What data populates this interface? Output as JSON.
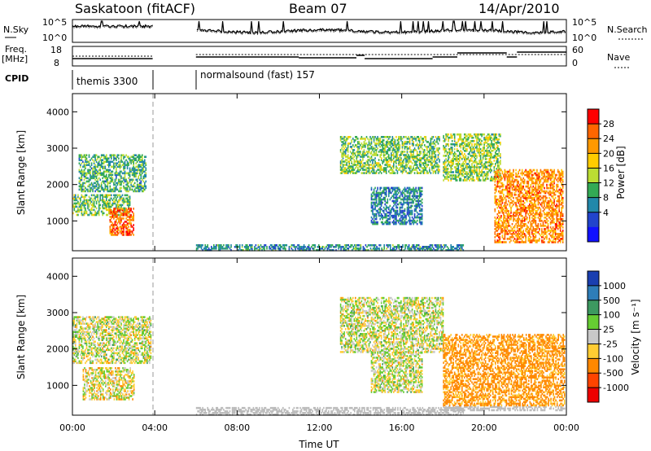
{
  "header": {
    "station": "Saskatoon (fitACF)",
    "beam": "Beam 07",
    "date": "14/Apr/2010"
  },
  "strips": {
    "nsky_label": "N.Sky",
    "nsearch_label": "N.Search",
    "noise_ticks": [
      "10^5",
      "10^0"
    ],
    "freq_label_line1": "Freq.",
    "freq_label_line2": "[MHz]",
    "freq_ticks": [
      "18",
      "8"
    ],
    "nave_label": "Nave",
    "nave_ticks": [
      "60",
      "0"
    ],
    "cpid_label": "CPID",
    "cpid_entries": [
      {
        "name": "themis 3300"
      },
      {
        "name": "normalsound (fast) 157"
      }
    ]
  },
  "panels": {
    "ylabel": "Slant Range [km]",
    "xlabel": "Time UT",
    "yticks": [
      "4000",
      "3000",
      "2000",
      "1000"
    ],
    "xticks": [
      "00:00",
      "04:00",
      "08:00",
      "12:00",
      "16:00",
      "20:00",
      "00:00"
    ]
  },
  "power_scale": {
    "label": "Power [dB]",
    "ticks": [
      "28",
      "24",
      "20",
      "16",
      "12",
      "8",
      "4"
    ],
    "colors": [
      "#ff0000",
      "#ff6600",
      "#ff9900",
      "#ffcc00",
      "#bbdd33",
      "#33aa55",
      "#2288aa",
      "#2244cc",
      "#1111ff"
    ]
  },
  "velocity_scale": {
    "label": "Velocity [m s⁻¹]",
    "ticks": [
      "1000",
      "500",
      "100",
      "25",
      "-25",
      "-100",
      "-500",
      "-1000"
    ],
    "colors": [
      "#1a3fb0",
      "#2e7db8",
      "#3d9960",
      "#66cc33",
      "#c8c8c8",
      "#ffcc33",
      "#ff8800",
      "#ff4400",
      "#ee0000"
    ]
  },
  "chart_data": {
    "type": "heatmap",
    "x_range_hours": [
      0,
      24
    ],
    "y_range_km": [
      180,
      4500
    ],
    "ground_scatter_color": "#bbbbbb",
    "power_blobs": [
      {
        "t0": 0.0,
        "t1": 2.8,
        "r0": 1150,
        "r1": 1700,
        "db": 14
      },
      {
        "t0": 0.3,
        "t1": 3.6,
        "r0": 1800,
        "r1": 2800,
        "db": 12
      },
      {
        "t0": 1.8,
        "t1": 3.0,
        "r0": 600,
        "r1": 1350,
        "db": 26
      },
      {
        "t0": 13.0,
        "t1": 17.8,
        "r0": 2300,
        "r1": 3300,
        "db": 14
      },
      {
        "t0": 14.5,
        "t1": 17.0,
        "r0": 900,
        "r1": 1900,
        "db": 9
      },
      {
        "t0": 18.0,
        "t1": 20.8,
        "r0": 2100,
        "r1": 3400,
        "db": 15
      },
      {
        "t0": 20.5,
        "t1": 23.8,
        "r0": 400,
        "r1": 2400,
        "db": 24
      },
      {
        "t0": 6.0,
        "t1": 19.0,
        "r0": 180,
        "r1": 350,
        "db": 10
      }
    ],
    "velocity_blobs": [
      {
        "t0": 0.0,
        "t1": 3.8,
        "r0": 1600,
        "r1": 2900,
        "v": 0
      },
      {
        "t0": 0.5,
        "t1": 3.0,
        "r0": 600,
        "r1": 1500,
        "v": -30
      },
      {
        "t0": 13.0,
        "t1": 18.0,
        "r0": 1900,
        "r1": 3400,
        "v": 0
      },
      {
        "t0": 14.5,
        "t1": 17.0,
        "r0": 800,
        "r1": 1900,
        "v": 0
      },
      {
        "t0": 18.0,
        "t1": 23.9,
        "r0": 300,
        "r1": 2400,
        "v": -150
      },
      {
        "t0": 6.0,
        "t1": 19.0,
        "r0": 180,
        "r1": 400,
        "v": -50
      }
    ]
  }
}
